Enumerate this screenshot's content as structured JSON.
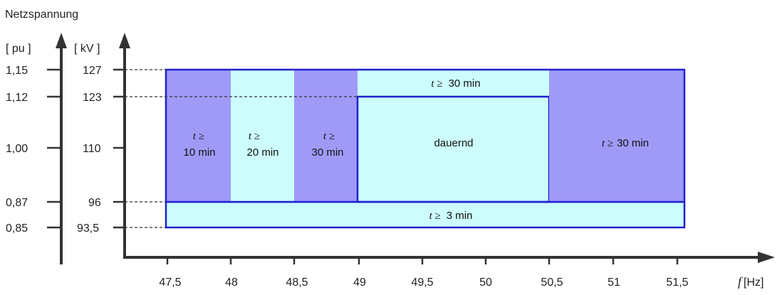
{
  "title": "Netzspannung",
  "colors": {
    "dark_region": "#a09af7",
    "light_region": "#ccfcfc",
    "border": "#2020d0",
    "axis": "#333333"
  },
  "axis_pu": {
    "unit_label": "[ pu ]",
    "ticks": [
      "1,15",
      "1,12",
      "1,00",
      "0,87",
      "0,85"
    ]
  },
  "axis_kv": {
    "unit_label": "[ kV ]",
    "ticks": [
      "127",
      "123",
      "110",
      "96",
      "93,5"
    ]
  },
  "axis_x": {
    "symbol": "f",
    "unit": "[Hz]",
    "ticks": [
      "47,5",
      "48",
      "48,5",
      "49",
      "49,5",
      "50",
      "50,5",
      "51",
      "51,5"
    ]
  },
  "regions": {
    "r1": {
      "line1": "t ≥",
      "line2": "10 min"
    },
    "r2": {
      "line1": "t ≥",
      "line2": "20  min"
    },
    "r3": {
      "line1": "t ≥",
      "line2": "30 min"
    },
    "top": {
      "symbol": "t ≥",
      "text": "30 min"
    },
    "center": {
      "text": "dauernd"
    },
    "right": {
      "symbol": "t ≥",
      "text": "30 min"
    },
    "bottom": {
      "symbol": "t ≥",
      "text": "3  min"
    }
  }
}
